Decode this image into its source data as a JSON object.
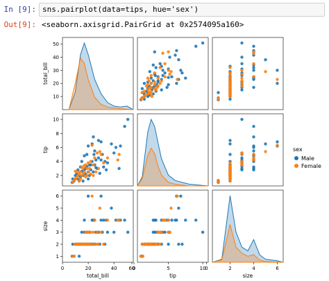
{
  "cells": {
    "input": {
      "prompt": "In [9]:",
      "code": "sns.pairplot(data=tips, hue='sex')"
    },
    "output": {
      "prompt": "Out[9]:",
      "text": "<seaborn.axisgrid.PairGrid at 0x2574095a160>"
    }
  },
  "colors": {
    "male": "#1f77b4",
    "female": "#ff7f0e"
  },
  "chart_data": {
    "type": "scatter",
    "variables": [
      "total_bill",
      "tip",
      "size"
    ],
    "axis_ranges": {
      "total_bill": [
        0,
        55
      ],
      "tip": [
        0.5,
        10.8
      ],
      "size": [
        0.5,
        6.5
      ]
    },
    "ticks": {
      "total_bill_y": [
        "10",
        "20",
        "30",
        "40",
        "50"
      ],
      "tip_y": [
        "2",
        "4",
        "6",
        "8",
        "10"
      ],
      "size_y": [
        "1",
        "2",
        "3",
        "4",
        "5",
        "6"
      ],
      "total_bill_x": [
        "0",
        "20",
        "40",
        "60"
      ],
      "tip_x": [
        "0",
        "5",
        "10"
      ],
      "size_x": [
        "0",
        "2",
        "4",
        "6"
      ]
    },
    "legend": {
      "title": "sex",
      "placement": "right",
      "entries": [
        "Male",
        "Female"
      ]
    },
    "series": [
      {
        "name": "Male",
        "points": [
          [
            24.5,
            5,
            4
          ],
          [
            30,
            4.2,
            4
          ],
          [
            35,
            3.8,
            3
          ],
          [
            41.5,
            6,
            4
          ],
          [
            48.3,
            9,
            4
          ],
          [
            50.8,
            10,
            3
          ],
          [
            45,
            6.2,
            4
          ],
          [
            40,
            5.2,
            3
          ],
          [
            28,
            4.5,
            3
          ],
          [
            26,
            3.1,
            2
          ],
          [
            22,
            3.5,
            2
          ],
          [
            20,
            2.5,
            2
          ],
          [
            18,
            3,
            2
          ],
          [
            16,
            2,
            2
          ],
          [
            15,
            2.6,
            2
          ],
          [
            14,
            1.8,
            2
          ],
          [
            13,
            2,
            2
          ],
          [
            12,
            1.5,
            2
          ],
          [
            10,
            1.5,
            2
          ],
          [
            9,
            1.2,
            1
          ],
          [
            8,
            1.5,
            2
          ],
          [
            7.5,
            1,
            1
          ],
          [
            11,
            2.2,
            2
          ],
          [
            17,
            2.8,
            3
          ],
          [
            19,
            3.3,
            3
          ],
          [
            21,
            2,
            2
          ],
          [
            23,
            4,
            4
          ],
          [
            25,
            3.5,
            2
          ],
          [
            27,
            3,
            3
          ],
          [
            29,
            2.3,
            2
          ],
          [
            31,
            5,
            3
          ],
          [
            33,
            4,
            2
          ],
          [
            20,
            1.5,
            2
          ],
          [
            21,
            3.5,
            3
          ],
          [
            24,
            2.5,
            2
          ],
          [
            32,
            3.2,
            4
          ],
          [
            34,
            2.8,
            4
          ],
          [
            38,
            6.5,
            5
          ],
          [
            44,
            3,
            4
          ],
          [
            25,
            5.5,
            4
          ],
          [
            23,
            6.5,
            2
          ],
          [
            13,
            1.2,
            1
          ],
          [
            17,
            4.8,
            4
          ],
          [
            15,
            4,
            3
          ],
          [
            19,
            5,
            2
          ],
          [
            24,
            7.5,
            4
          ],
          [
            28,
            7,
            2
          ],
          [
            30,
            6.8,
            6
          ],
          [
            20,
            6.2,
            6
          ],
          [
            16,
            1.2,
            2
          ],
          [
            14,
            3.2,
            2
          ],
          [
            12,
            2.8,
            2
          ],
          [
            18,
            2.2,
            2
          ],
          [
            22,
            2.8,
            2
          ],
          [
            26,
            4.2,
            3
          ],
          [
            10,
            2,
            2
          ]
        ]
      },
      {
        "name": "Female",
        "points": [
          [
            8,
            1,
            1
          ],
          [
            10,
            1.5,
            2
          ],
          [
            11,
            1.7,
            2
          ],
          [
            12,
            2,
            2
          ],
          [
            13,
            2.2,
            2
          ],
          [
            14,
            2.5,
            2
          ],
          [
            15,
            2,
            2
          ],
          [
            16,
            3,
            2
          ],
          [
            17,
            2.5,
            2
          ],
          [
            18,
            3.5,
            3
          ],
          [
            19,
            3,
            2
          ],
          [
            20,
            2.5,
            2
          ],
          [
            21,
            3,
            2
          ],
          [
            22,
            4,
            3
          ],
          [
            24,
            3.5,
            3
          ],
          [
            26,
            2.5,
            2
          ],
          [
            28,
            3,
            2
          ],
          [
            30,
            5,
            3
          ],
          [
            35,
            4.5,
            4
          ],
          [
            44,
            5,
            4
          ],
          [
            43,
            4.2,
            4
          ],
          [
            12,
            2.5,
            2
          ],
          [
            14,
            1.5,
            2
          ],
          [
            9,
            1.3,
            1
          ],
          [
            16,
            2.2,
            2
          ],
          [
            18,
            1.8,
            2
          ],
          [
            22,
            2.2,
            2
          ],
          [
            25,
            4.5,
            4
          ],
          [
            27,
            5.2,
            3
          ],
          [
            20,
            3.8,
            3
          ],
          [
            15,
            3.2,
            2
          ],
          [
            17,
            3.4,
            2
          ],
          [
            13,
            1.2,
            2
          ],
          [
            19,
            2,
            2
          ],
          [
            24,
            2,
            2
          ],
          [
            32,
            3.8,
            2
          ],
          [
            10,
            2.6,
            2
          ],
          [
            23,
            6.3,
            6
          ],
          [
            29,
            5.4,
            5
          ]
        ]
      }
    ],
    "kde": {
      "total_bill": {
        "Male": [
          [
            5,
            0
          ],
          [
            10,
            0.02
          ],
          [
            14,
            0.062
          ],
          [
            17,
            0.075
          ],
          [
            20,
            0.062
          ],
          [
            25,
            0.034
          ],
          [
            30,
            0.018
          ],
          [
            35,
            0.008
          ],
          [
            40,
            0.004
          ],
          [
            45,
            0.003
          ],
          [
            50,
            0.004
          ],
          [
            55,
            0
          ]
        ],
        "Female": [
          [
            5,
            0
          ],
          [
            10,
            0.03
          ],
          [
            14,
            0.058
          ],
          [
            17,
            0.052
          ],
          [
            20,
            0.034
          ],
          [
            25,
            0.014
          ],
          [
            30,
            0.006
          ],
          [
            35,
            0.003
          ],
          [
            45,
            0.001
          ],
          [
            55,
            0
          ]
        ]
      },
      "tip": {
        "Male": [
          [
            0.5,
            0
          ],
          [
            1.2,
            0.05
          ],
          [
            2,
            0.3
          ],
          [
            2.5,
            0.37
          ],
          [
            3,
            0.33
          ],
          [
            3.5,
            0.24
          ],
          [
            4,
            0.15
          ],
          [
            5,
            0.06
          ],
          [
            6,
            0.03
          ],
          [
            8,
            0.01
          ],
          [
            10.8,
            0
          ]
        ],
        "Female": [
          [
            0.5,
            0
          ],
          [
            1.2,
            0.04
          ],
          [
            2,
            0.17
          ],
          [
            2.5,
            0.21
          ],
          [
            3,
            0.18
          ],
          [
            3.5,
            0.11
          ],
          [
            4,
            0.06
          ],
          [
            5,
            0.02
          ],
          [
            6,
            0.01
          ],
          [
            8,
            0
          ],
          [
            10.8,
            0
          ]
        ]
      },
      "size": {
        "Male": [
          [
            0.5,
            0
          ],
          [
            1.3,
            0.04
          ],
          [
            2,
            0.88
          ],
          [
            2.5,
            0.4
          ],
          [
            3,
            0.2
          ],
          [
            3.5,
            0.15
          ],
          [
            4,
            0.3
          ],
          [
            4.5,
            0.1
          ],
          [
            5,
            0.04
          ],
          [
            6,
            0.02
          ],
          [
            6.5,
            0
          ]
        ],
        "Female": [
          [
            0.5,
            0
          ],
          [
            1.3,
            0.03
          ],
          [
            2,
            0.5
          ],
          [
            2.5,
            0.2
          ],
          [
            3,
            0.12
          ],
          [
            3.5,
            0.08
          ],
          [
            4,
            0.1
          ],
          [
            4.5,
            0.03
          ],
          [
            5,
            0.01
          ],
          [
            6,
            0.005
          ],
          [
            6.5,
            0
          ]
        ]
      }
    }
  }
}
